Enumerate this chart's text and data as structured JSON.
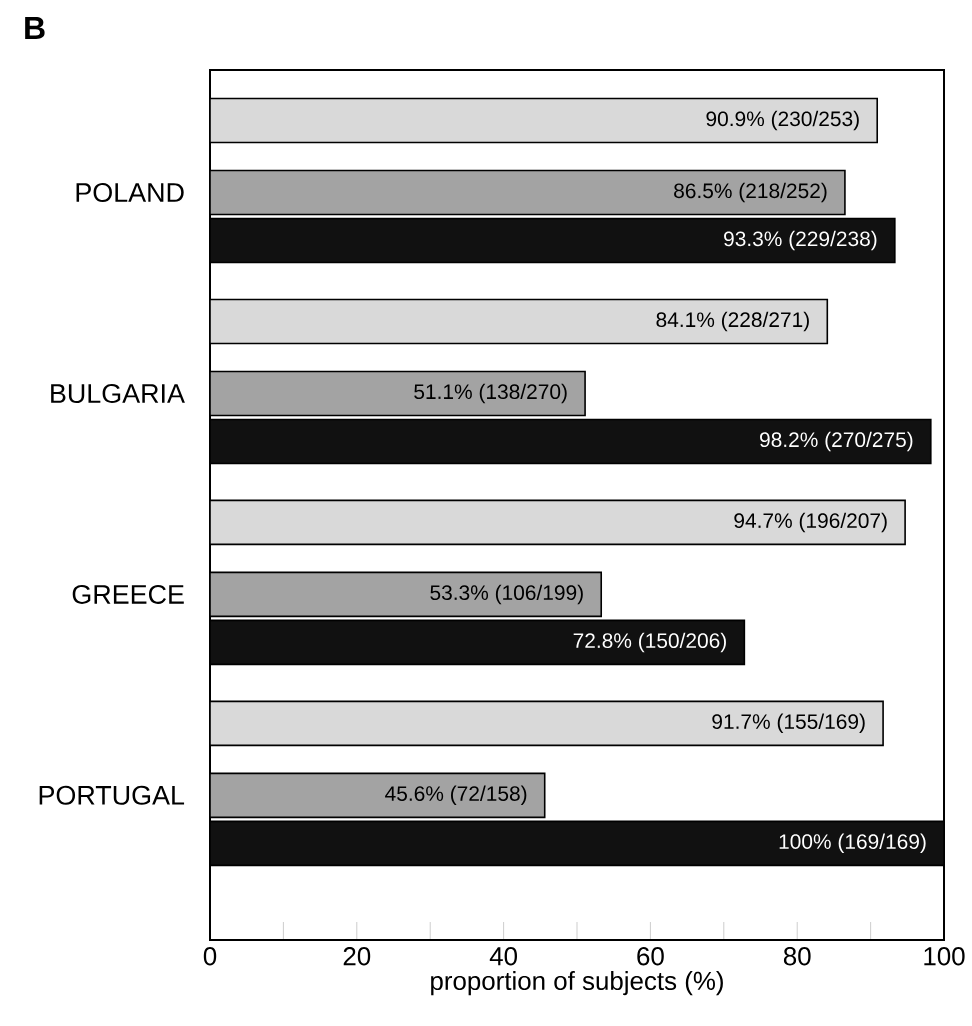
{
  "chart_data": {
    "type": "bar",
    "orientation": "horizontal",
    "title": "B",
    "xlabel": "proportion of subjects (%)",
    "categories": [
      "POLAND",
      "BULGARIA",
      "GREECE",
      "PORTUGAL"
    ],
    "series": [
      {
        "color": "#d9d9d9",
        "values": [
          90.9,
          84.1,
          94.7,
          91.7
        ],
        "value_labels": [
          "90.9% (230/253)",
          "84.1% (228/271)",
          "94.7% (196/207)",
          "91.7% (155/169)"
        ]
      },
      {
        "color": "#a3a3a3",
        "values": [
          86.5,
          51.1,
          53.3,
          45.6
        ],
        "value_labels": [
          "86.5% (218/252)",
          "51.1% (138/270)",
          "53.3% (106/199)",
          "45.6% (72/158)"
        ]
      },
      {
        "color": "#111111",
        "values": [
          93.3,
          98.2,
          72.8,
          100
        ],
        "value_labels": [
          "93.3% (229/238)",
          "98.2% (270/275)",
          "72.8% (150/206)",
          "100% (169/169)"
        ]
      }
    ],
    "xlim": [
      0,
      100
    ],
    "xticks": [
      0,
      {
        "value": 10,
        "label": null
      },
      20,
      {
        "value": 30,
        "label": null
      },
      40,
      {
        "value": 50,
        "label": null
      },
      60,
      {
        "value": 70,
        "label": null
      },
      80,
      {
        "value": 90,
        "label": null
      },
      100
    ]
  }
}
